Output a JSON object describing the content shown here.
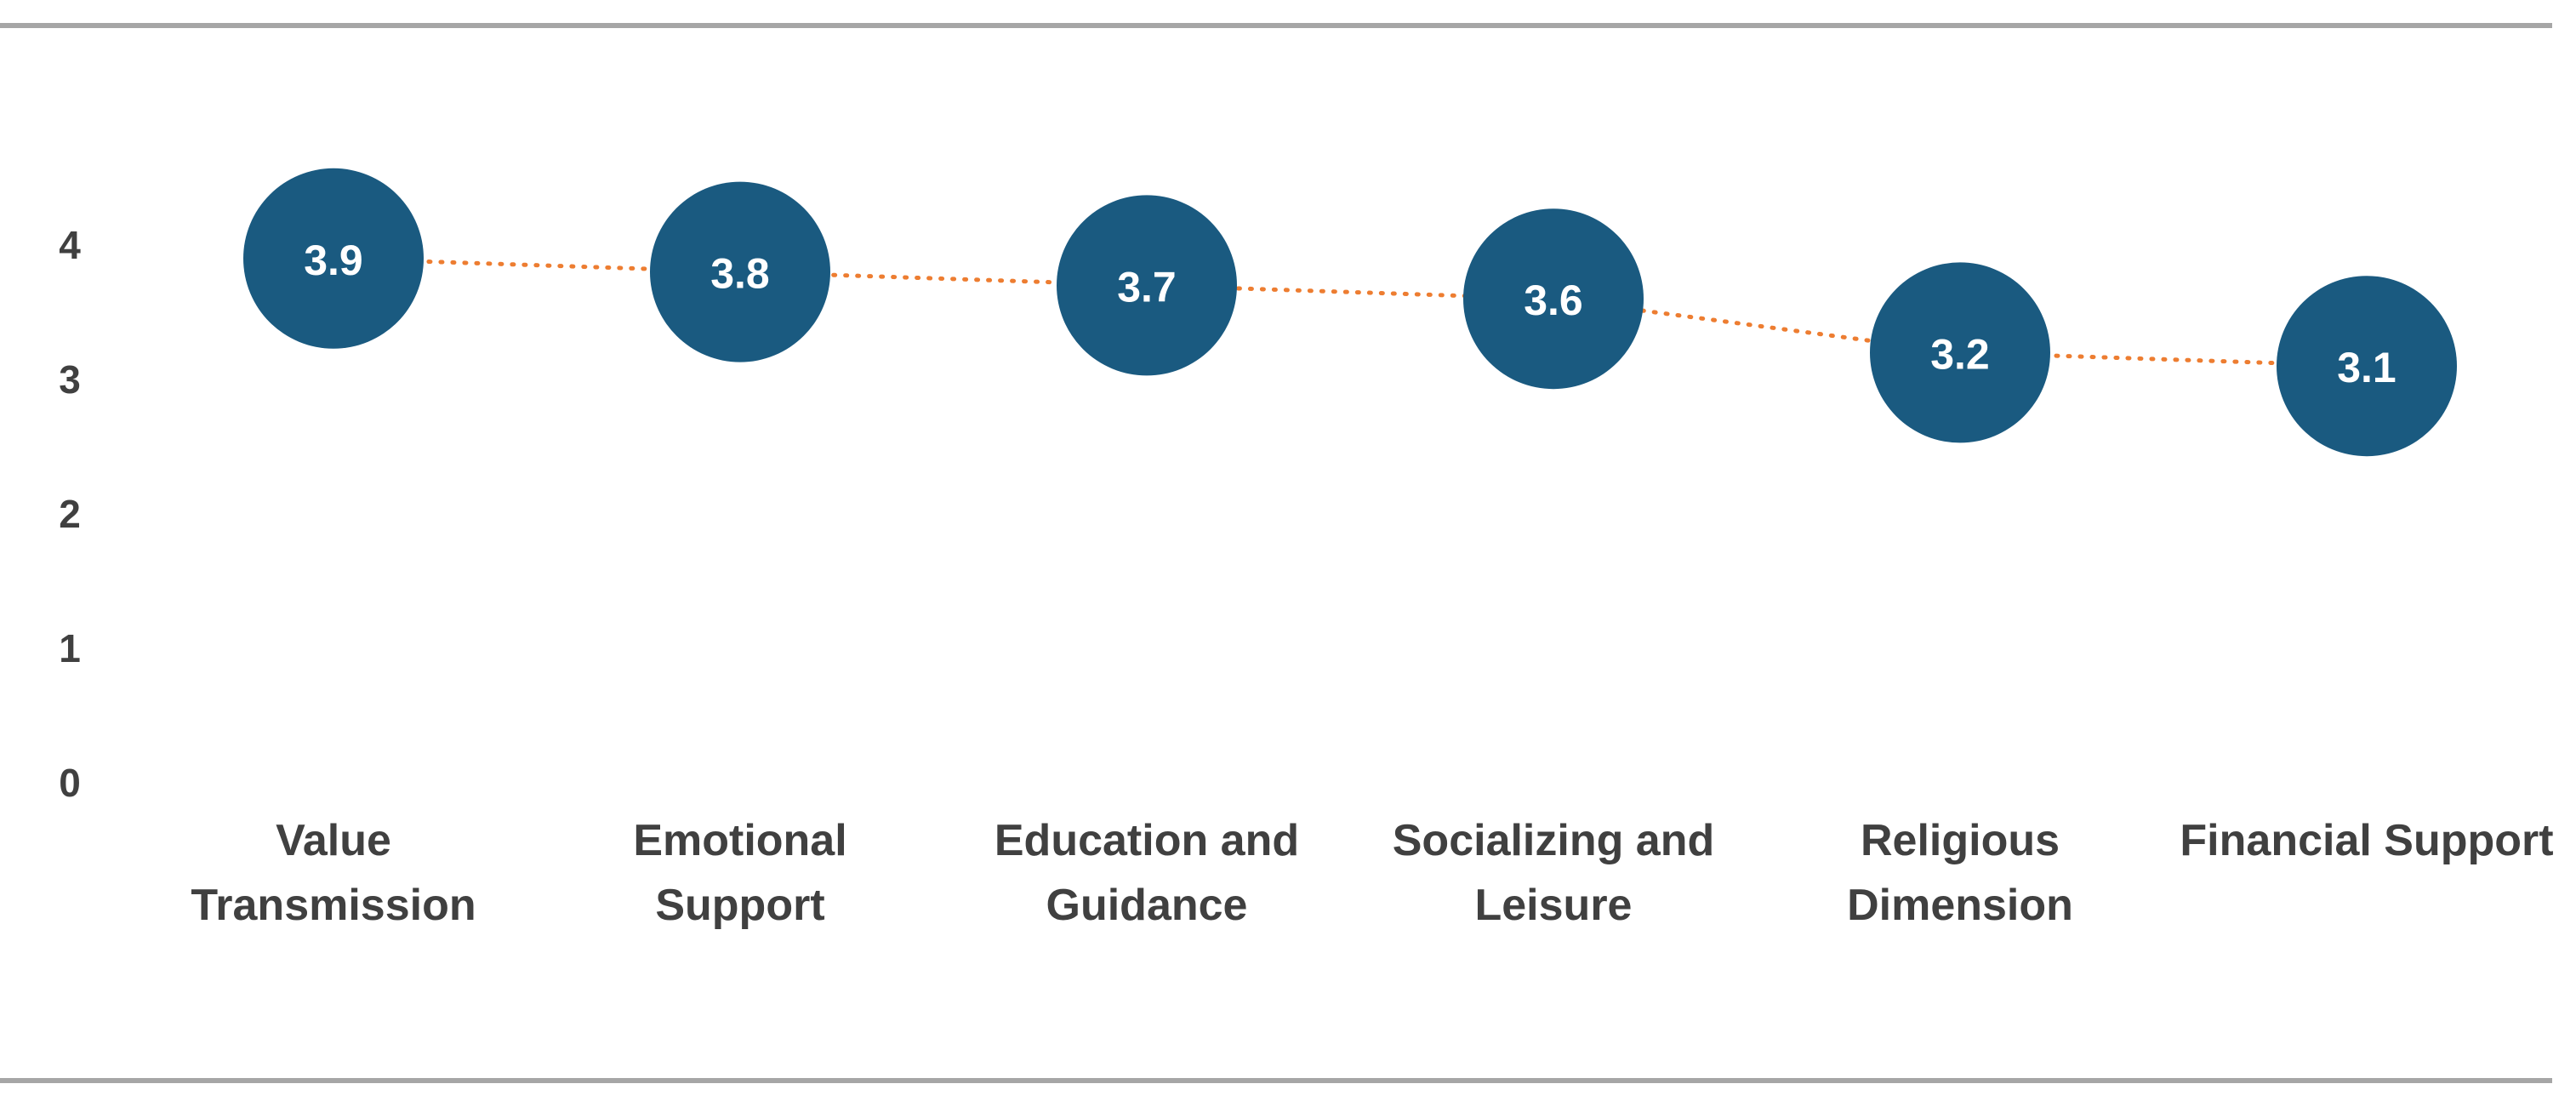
{
  "colors": {
    "marker": "#1a5a80",
    "connector": "#ed7d31",
    "text": "#404040",
    "rule": "#a6a6a6"
  },
  "chart_data": {
    "type": "line",
    "title": "",
    "xlabel": "",
    "ylabel": "",
    "ylim": [
      0,
      4
    ],
    "yticks": [
      "0",
      "1",
      "2",
      "3",
      "4"
    ],
    "grid": false,
    "legend": "none",
    "categories": [
      [
        "Value",
        "Transmission"
      ],
      [
        "Emotional",
        "Support"
      ],
      [
        "Education and",
        "Guidance"
      ],
      [
        "Socializing and",
        "Leisure"
      ],
      [
        "Religious",
        "Dimension"
      ],
      [
        "Financial Support"
      ]
    ],
    "series": [
      {
        "values": [
          3.9,
          3.8,
          3.7,
          3.6,
          3.2,
          3.1
        ],
        "labels": [
          "3.9",
          "3.8",
          "3.7",
          "3.6",
          "3.2",
          "3.1"
        ]
      }
    ]
  }
}
